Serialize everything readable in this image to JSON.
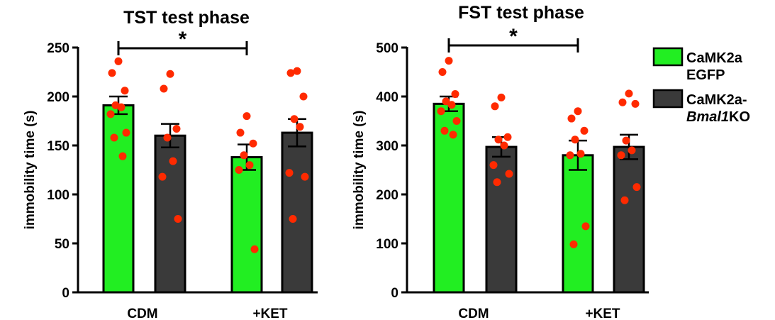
{
  "chart_data": [
    {
      "type": "bar",
      "title": "TST test phase",
      "ylabel": "immobility time (s)",
      "xlabel": "",
      "ylim": [
        0,
        250
      ],
      "yticks": [
        "0",
        "50",
        "100",
        "150",
        "200",
        "250"
      ],
      "yticks_values": [
        0,
        50,
        100,
        150,
        200,
        250
      ],
      "categories": [
        "CDM",
        "+KET"
      ],
      "significance": {
        "label": "*",
        "between": [
          "CDM CaMK2a EGFP",
          "+KET CaMK2a EGFP"
        ]
      },
      "series": [
        {
          "name": "CaMK2a EGFP",
          "values": [
            191,
            138
          ],
          "sem": [
            9,
            13
          ],
          "points": [
            [
              236,
              224,
              206,
              191,
              189,
              182,
              163,
              158,
              139
            ],
            [
              180,
              163,
              152,
              140,
              130,
              125,
              44
            ]
          ]
        },
        {
          "name": "CaMK2a-Bmal1KO",
          "values": [
            160,
            163
          ],
          "sem": [
            12,
            14
          ],
          "points": [
            [
              223,
              208,
              167,
              158,
              134,
              118,
              75
            ],
            [
              226,
              224,
              200,
              177,
              169,
              122,
              118,
              75
            ]
          ]
        }
      ]
    },
    {
      "type": "bar",
      "title": "FST test phase",
      "ylabel": "immobility time (s)",
      "xlabel": "",
      "ylim": [
        0,
        500
      ],
      "yticks": [
        "0",
        "100",
        "200",
        "300",
        "400",
        "500"
      ],
      "yticks_values": [
        0,
        100,
        200,
        300,
        400,
        500
      ],
      "categories": [
        "CDM",
        "+KET"
      ],
      "significance": {
        "label": "*",
        "between": [
          "CDM CaMK2a EGFP",
          "+KET CaMK2a EGFP"
        ]
      },
      "series": [
        {
          "name": "CaMK2a EGFP",
          "values": [
            385,
            280
          ],
          "sem": [
            15,
            30
          ],
          "points": [
            [
              473,
              450,
              405,
              390,
              383,
              370,
              350,
              330,
              322
            ],
            [
              370,
              355,
              330,
              312,
              283,
              280,
              135,
              98
            ]
          ]
        },
        {
          "name": "CaMK2a-Bmal1KO",
          "values": [
            297,
            297
          ],
          "sem": [
            20,
            25
          ],
          "points": [
            [
              398,
              380,
              317,
              312,
              300,
              260,
              242,
              225
            ],
            [
              406,
              388,
              385,
              310,
              290,
              280,
              215,
              188
            ]
          ]
        }
      ]
    }
  ],
  "legend": [
    {
      "color": "#22ee22",
      "lines": [
        [
          {
            "t": "CaMK2a",
            "i": false
          }
        ],
        [
          {
            "t": " EGFP",
            "i": false
          }
        ]
      ]
    },
    {
      "color": "#3a3a3a",
      "lines": [
        [
          {
            "t": "CaMK2a-",
            "i": false
          }
        ],
        [
          {
            "t": "Bmal1",
            "i": true
          },
          {
            "t": "KO",
            "i": false
          }
        ]
      ]
    }
  ],
  "colors": {
    "egfp": "#22ee22",
    "ko": "#3a3a3a",
    "dot": "#ff2a00",
    "axis": "#000000"
  }
}
